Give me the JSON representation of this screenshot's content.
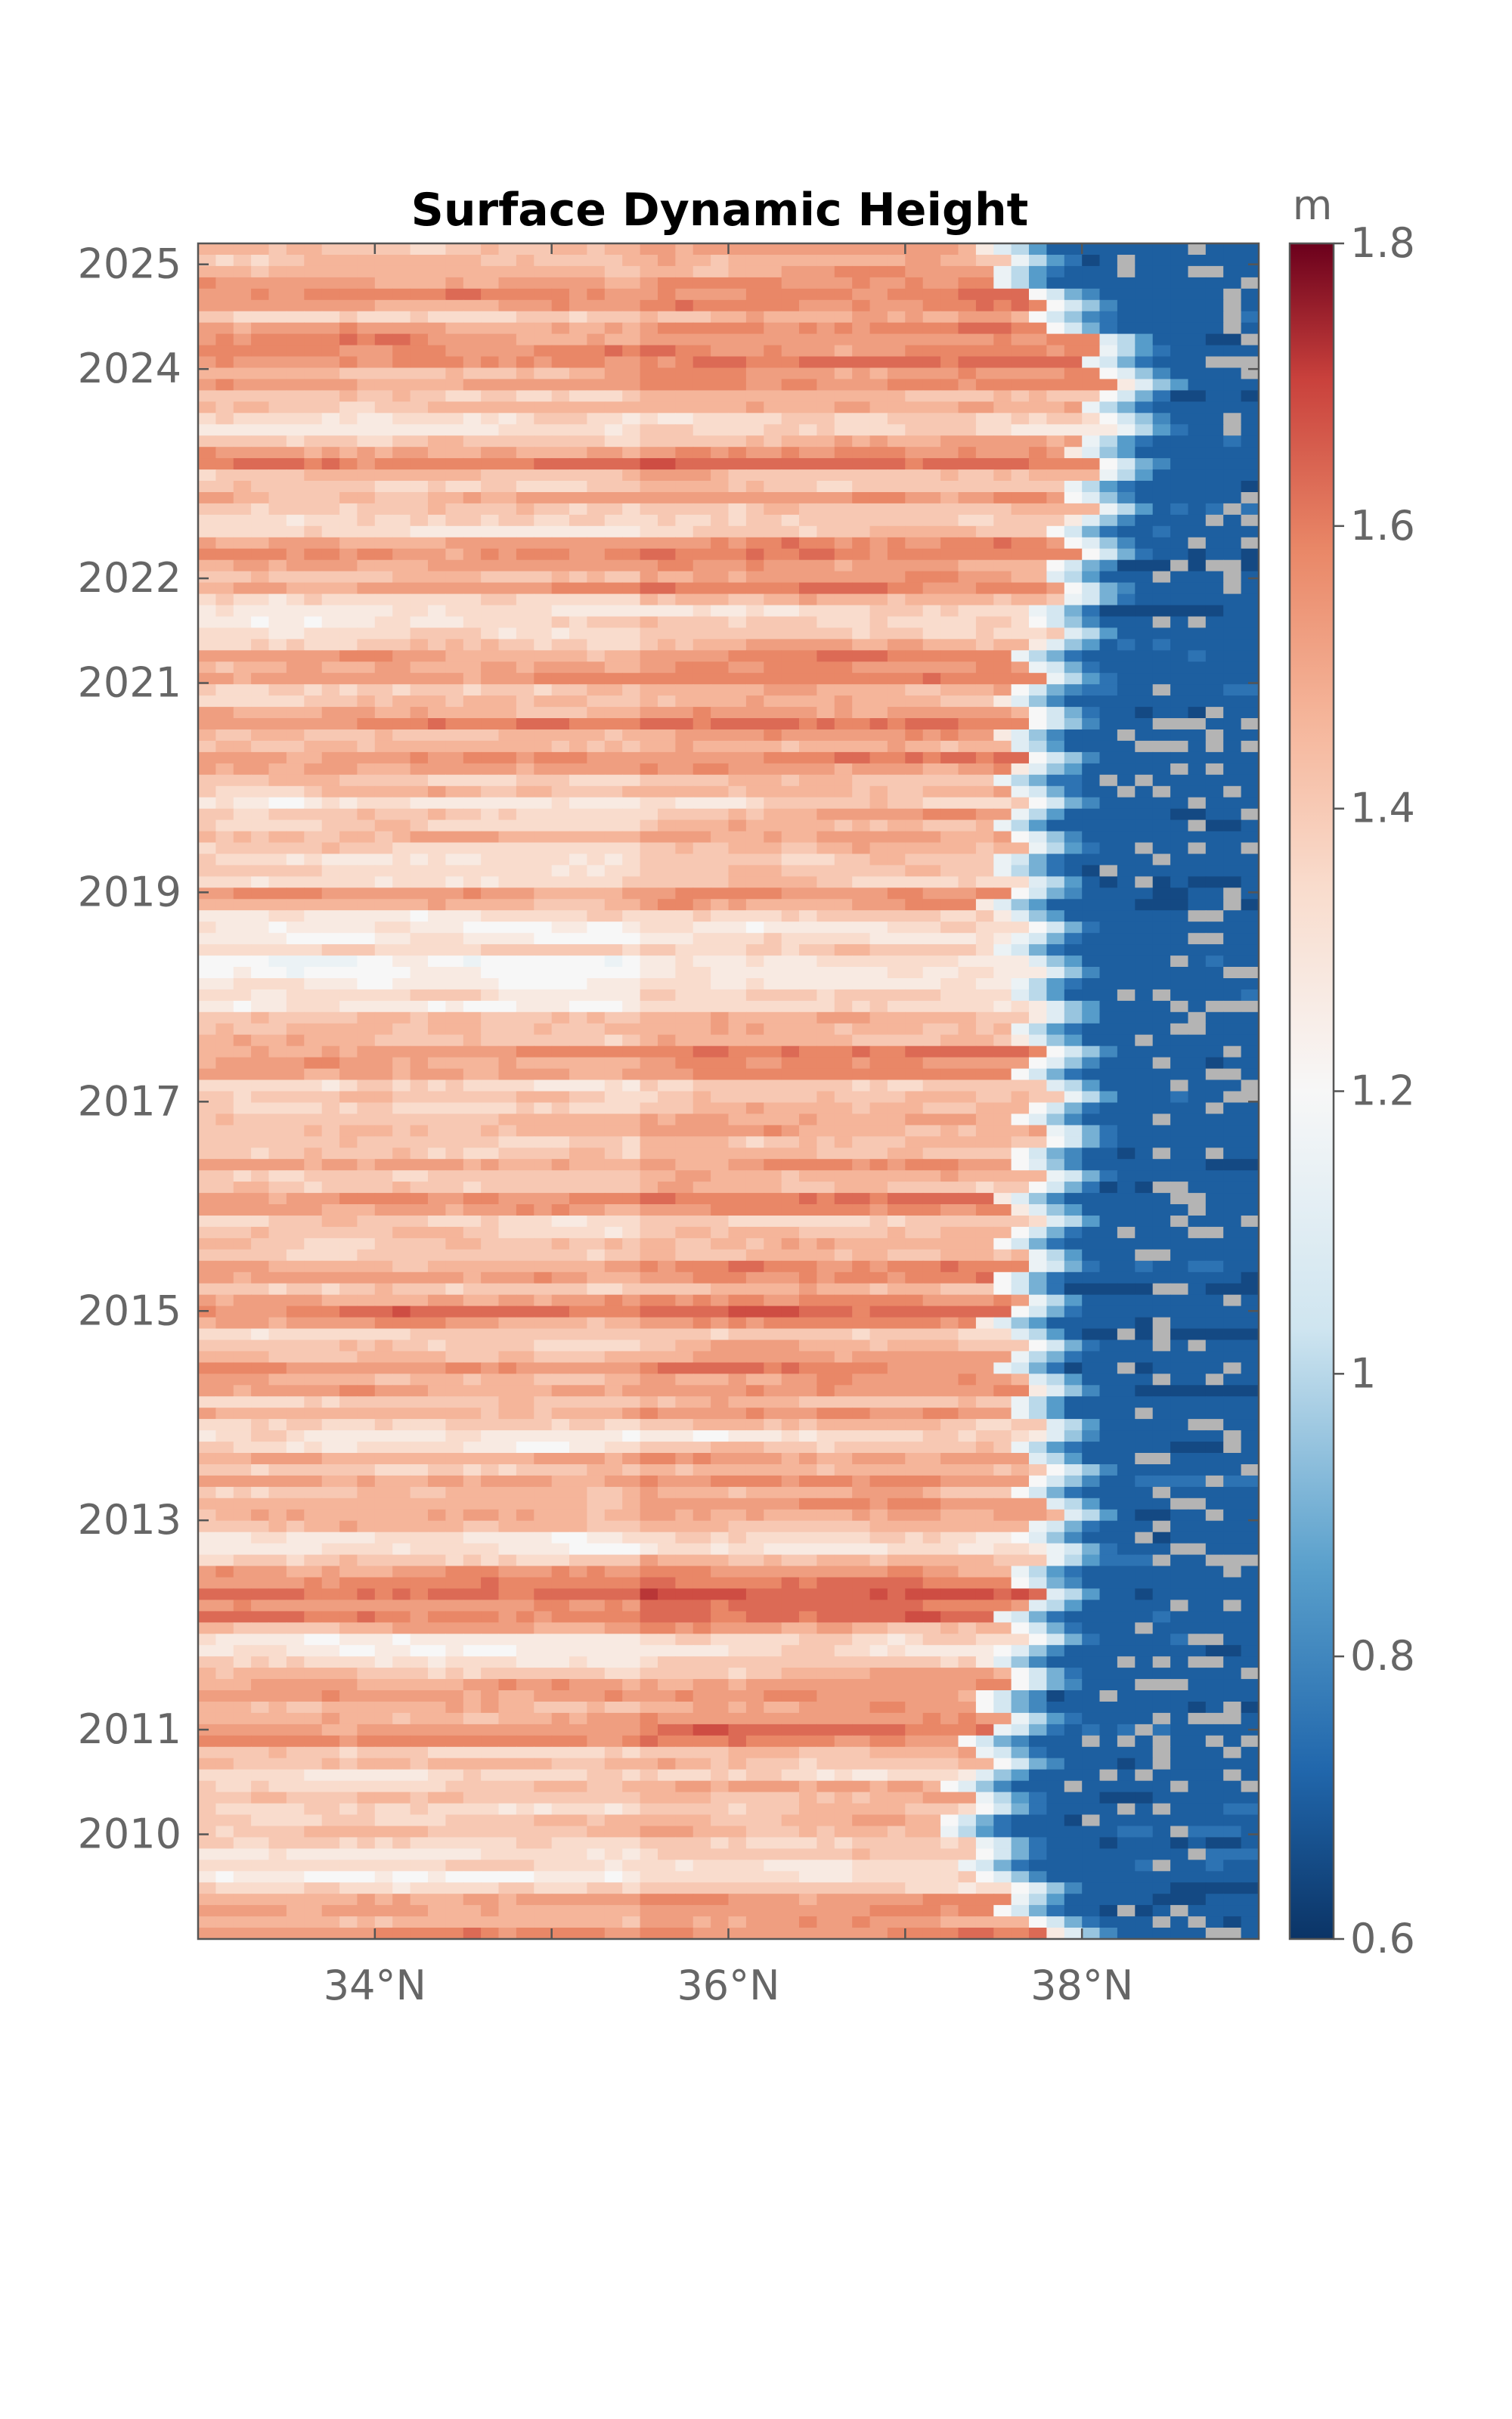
{
  "chart_data": {
    "type": "heatmap",
    "title": "Surface Dynamic Height",
    "xlabel": "",
    "ylabel": "",
    "x_ticks": [
      "34°N",
      "36°N",
      "38°N"
    ],
    "x_tick_values": [
      34,
      36,
      38
    ],
    "xlim": [
      33,
      39
    ],
    "y_ticks": [
      "2010",
      "2011",
      "2013",
      "2015",
      "2017",
      "2019",
      "2021",
      "2022",
      "2024",
      "2025"
    ],
    "y_tick_values": [
      2010,
      2011,
      2013,
      2015,
      2017,
      2019,
      2021,
      2022,
      2024,
      2025
    ],
    "ylim": [
      2009,
      2025.2
    ],
    "colorbar": {
      "label": "m",
      "ticks": [
        "1.8",
        "1.6",
        "1.4",
        "1.2",
        "1",
        "0.8",
        "0.6"
      ],
      "tick_values": [
        1.8,
        1.6,
        1.4,
        1.2,
        1.0,
        0.8,
        0.6
      ],
      "range": [
        0.6,
        1.8
      ],
      "colormap": "diverging red-white-blue"
    },
    "field": {
      "description_of_value": "surface dynamic height (m) vs latitude and time",
      "south_values_m": [
        1.4,
        1.45,
        1.35,
        1.5
      ],
      "north_values_m": [
        0.68,
        0.72,
        0.7
      ],
      "front_latitude_by_year": [
        [
          2009,
          37.8
        ],
        [
          2010,
          37.3
        ],
        [
          2011,
          37.5
        ],
        [
          2013,
          37.8
        ],
        [
          2015,
          37.6
        ],
        [
          2017,
          37.8
        ],
        [
          2019,
          37.6
        ],
        [
          2021,
          37.7
        ],
        [
          2022,
          37.9
        ],
        [
          2024,
          38.2
        ],
        [
          2025,
          37.5
        ]
      ],
      "gray_color": "#b4b4b4"
    },
    "colors": {
      "dark_red": "#8b0a26",
      "red": "#c9413c",
      "salmon": "#e98767",
      "light_salmon": "#f5b59a",
      "pale": "#f9dccd",
      "white": "#f7f7f7",
      "light_blue": "#cfe5f0",
      "mid_blue": "#5aa0cc",
      "blue": "#2167ac",
      "dark_blue": "#0b3466",
      "gray_mask": "#b4b4b4"
    }
  }
}
